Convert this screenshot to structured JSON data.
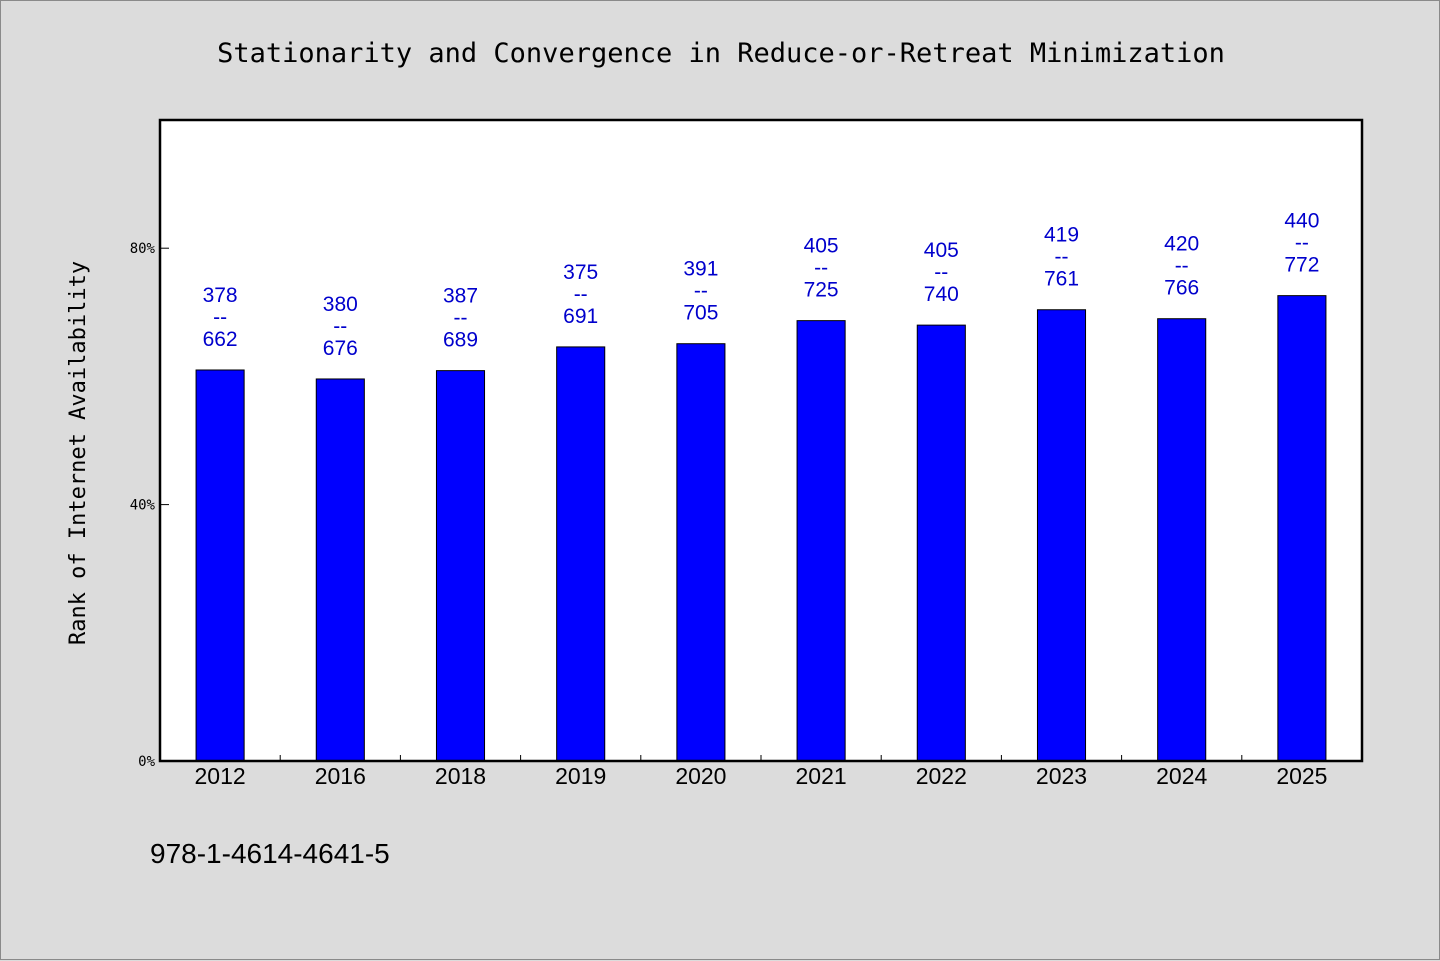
{
  "chart_data": {
    "type": "bar",
    "title": "Stationarity and Convergence in Reduce-or-Retreat Minimization",
    "xlabel": "",
    "ylabel": "Rank of Internet Availability",
    "categories": [
      "2012",
      "2016",
      "2018",
      "2019",
      "2020",
      "2021",
      "2022",
      "2023",
      "2024",
      "2025"
    ],
    "values": [
      61,
      59.6,
      60.9,
      64.6,
      65.1,
      68.7,
      68.0,
      70.4,
      69.0,
      72.6
    ],
    "data_labels": [
      [
        "378",
        "--",
        "662"
      ],
      [
        "380",
        "--",
        "676"
      ],
      [
        "387",
        "--",
        "689"
      ],
      [
        "375",
        "--",
        "691"
      ],
      [
        "391",
        "--",
        "705"
      ],
      [
        "405",
        "--",
        "725"
      ],
      [
        "405",
        "--",
        "740"
      ],
      [
        "419",
        "--",
        "761"
      ],
      [
        "420",
        "--",
        "766"
      ],
      [
        "440",
        "--",
        "772"
      ]
    ],
    "ylim": [
      0,
      100
    ],
    "yticks": [
      0,
      40,
      80
    ],
    "ytick_labels": [
      "0%",
      "40%",
      "80%"
    ],
    "grid": false,
    "bar_color": "#0000ff",
    "label_color": "#0000cc",
    "background_color": "#dcdcdc",
    "plot_background": "#ffffff"
  },
  "footer": {
    "text": "978-1-4614-4641-5"
  }
}
